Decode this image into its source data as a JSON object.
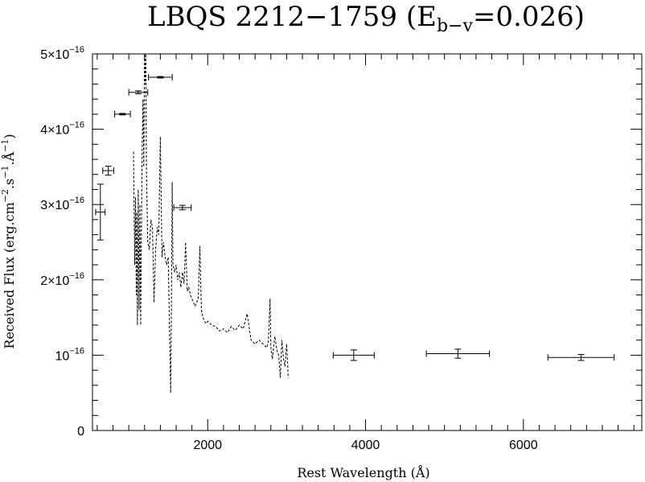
{
  "chart_data": {
    "type": "line",
    "title": "LBQS 2212−1759 (E",
    "title_sub": "b−v",
    "title_tail": "=0.026)",
    "xlabel": "Rest Wavelength (Å)",
    "ylabel": "Received Flux (erg.cm",
    "ylabel_sup1": "−2",
    "ylabel_mid1": ".s",
    "ylabel_sup2": "−1",
    "ylabel_mid2": ".Å",
    "ylabel_sup3": "−1",
    "ylabel_end": ")",
    "xlim": [
      540,
      7500
    ],
    "ylim": [
      0,
      5e-16
    ],
    "x_ticks": [
      {
        "value": 2000,
        "label": "2000"
      },
      {
        "value": 4000,
        "label": "4000"
      },
      {
        "value": 6000,
        "label": "6000"
      }
    ],
    "y_ticks": [
      {
        "value": 0,
        "label": "0",
        "mant": "",
        "exp": ""
      },
      {
        "value": 1e-16,
        "label": "",
        "mant": "10",
        "exp": "−16"
      },
      {
        "value": 2e-16,
        "label": "",
        "mant": "2×10",
        "exp": "−16"
      },
      {
        "value": 3e-16,
        "label": "",
        "mant": "3×10",
        "exp": "−16"
      },
      {
        "value": 4e-16,
        "label": "",
        "mant": "4×10",
        "exp": "−16"
      },
      {
        "value": 5e-16,
        "label": "",
        "mant": "5×10",
        "exp": "−16"
      }
    ],
    "grid": false,
    "series": [
      {
        "style": "dashed",
        "x": [
          1060,
          1075,
          1085,
          1095,
          1100,
          1110,
          1120,
          1130,
          1140,
          1150,
          1160,
          1170,
          1180,
          1190,
          1200,
          1210,
          1215,
          1225,
          1240,
          1260,
          1280,
          1300,
          1320,
          1340,
          1360,
          1380,
          1400,
          1420,
          1440,
          1460,
          1480,
          1500,
          1520,
          1530,
          1540,
          1550,
          1560,
          1580,
          1600,
          1620,
          1640,
          1660,
          1680,
          1700,
          1720,
          1740,
          1760,
          1780,
          1800,
          1820,
          1840,
          1860,
          1880,
          1900,
          1920,
          1940,
          1960,
          1980,
          2000,
          2050,
          2100,
          2150,
          2200,
          2250,
          2300,
          2350,
          2400,
          2450,
          2500,
          2550,
          2600,
          2650,
          2700,
          2750,
          2770,
          2790,
          2800,
          2820,
          2850,
          2880,
          2900,
          2920,
          2940,
          2960,
          2980,
          3000,
          3020
        ],
        "y": [
          3.7e-16,
          2.2e-16,
          3.1e-16,
          1.8e-16,
          2.9e-16,
          1.4e-16,
          3.2e-16,
          1.6e-16,
          3e-16,
          1.4e-16,
          2.6e-16,
          3.8e-16,
          4.4e-16,
          3.5e-16,
          5e-16,
          4.6e-16,
          5e-16,
          3.4e-16,
          2.5e-16,
          2.4e-16,
          2.8e-16,
          2.7e-16,
          1.7e-16,
          2.4e-16,
          2.7e-16,
          2.6e-16,
          3.9e-16,
          2.3e-16,
          2.5e-16,
          2.3e-16,
          2.2e-16,
          2.3e-16,
          1.1e-16,
          5e-17,
          1.6e-16,
          3.3e-16,
          2.2e-16,
          2.1e-16,
          2.2e-16,
          2e-16,
          2.1e-16,
          1.9e-16,
          2.1e-16,
          1.95e-16,
          2.5e-16,
          1.85e-16,
          1.9e-16,
          1.8e-16,
          1.75e-16,
          1.7e-16,
          1.65e-16,
          1.7e-16,
          1.75e-16,
          2.45e-16,
          1.6e-16,
          1.5e-16,
          1.45e-16,
          1.42e-16,
          1.45e-16,
          1.4e-16,
          1.38e-16,
          1.32e-16,
          1.35e-16,
          1.3e-16,
          1.38e-16,
          1.33e-16,
          1.4e-16,
          1.35e-16,
          1.55e-16,
          1.2e-16,
          1.15e-16,
          1.2e-16,
          1.15e-16,
          1.1e-16,
          1.2e-16,
          1.75e-16,
          1.1e-16,
          9.5e-17,
          1.25e-16,
          1.05e-16,
          1e-16,
          7e-17,
          1.2e-16,
          9.5e-17,
          8.5e-17,
          1.15e-16,
          7e-17
        ]
      },
      {
        "style": "errorbars",
        "points": [
          {
            "x": 640,
            "xerr": 60,
            "y": 2.9e-16,
            "yerr": 3.7e-17
          },
          {
            "x": 740,
            "xerr": 70,
            "y": 3.45e-16,
            "yerr": 6e-18
          },
          {
            "x": 920,
            "xerr": 100,
            "y": 4.2e-16,
            "yerr": 1e-18
          },
          {
            "x": 1120,
            "xerr": 120,
            "y": 4.49e-16,
            "yerr": 2e-18
          },
          {
            "x": 1400,
            "xerr": 150,
            "y": 4.69e-16,
            "yerr": 1e-18
          },
          {
            "x": 1680,
            "xerr": 110,
            "y": 2.96e-16,
            "yerr": 3e-18
          },
          {
            "x": 3850,
            "xerr": 260,
            "y": 1e-16,
            "yerr": 7e-18
          },
          {
            "x": 5170,
            "xerr": 400,
            "y": 1.02e-16,
            "yerr": 6e-18
          },
          {
            "x": 6730,
            "xerr": 420,
            "y": 9.7e-17,
            "yerr": 4e-18
          }
        ]
      }
    ]
  }
}
